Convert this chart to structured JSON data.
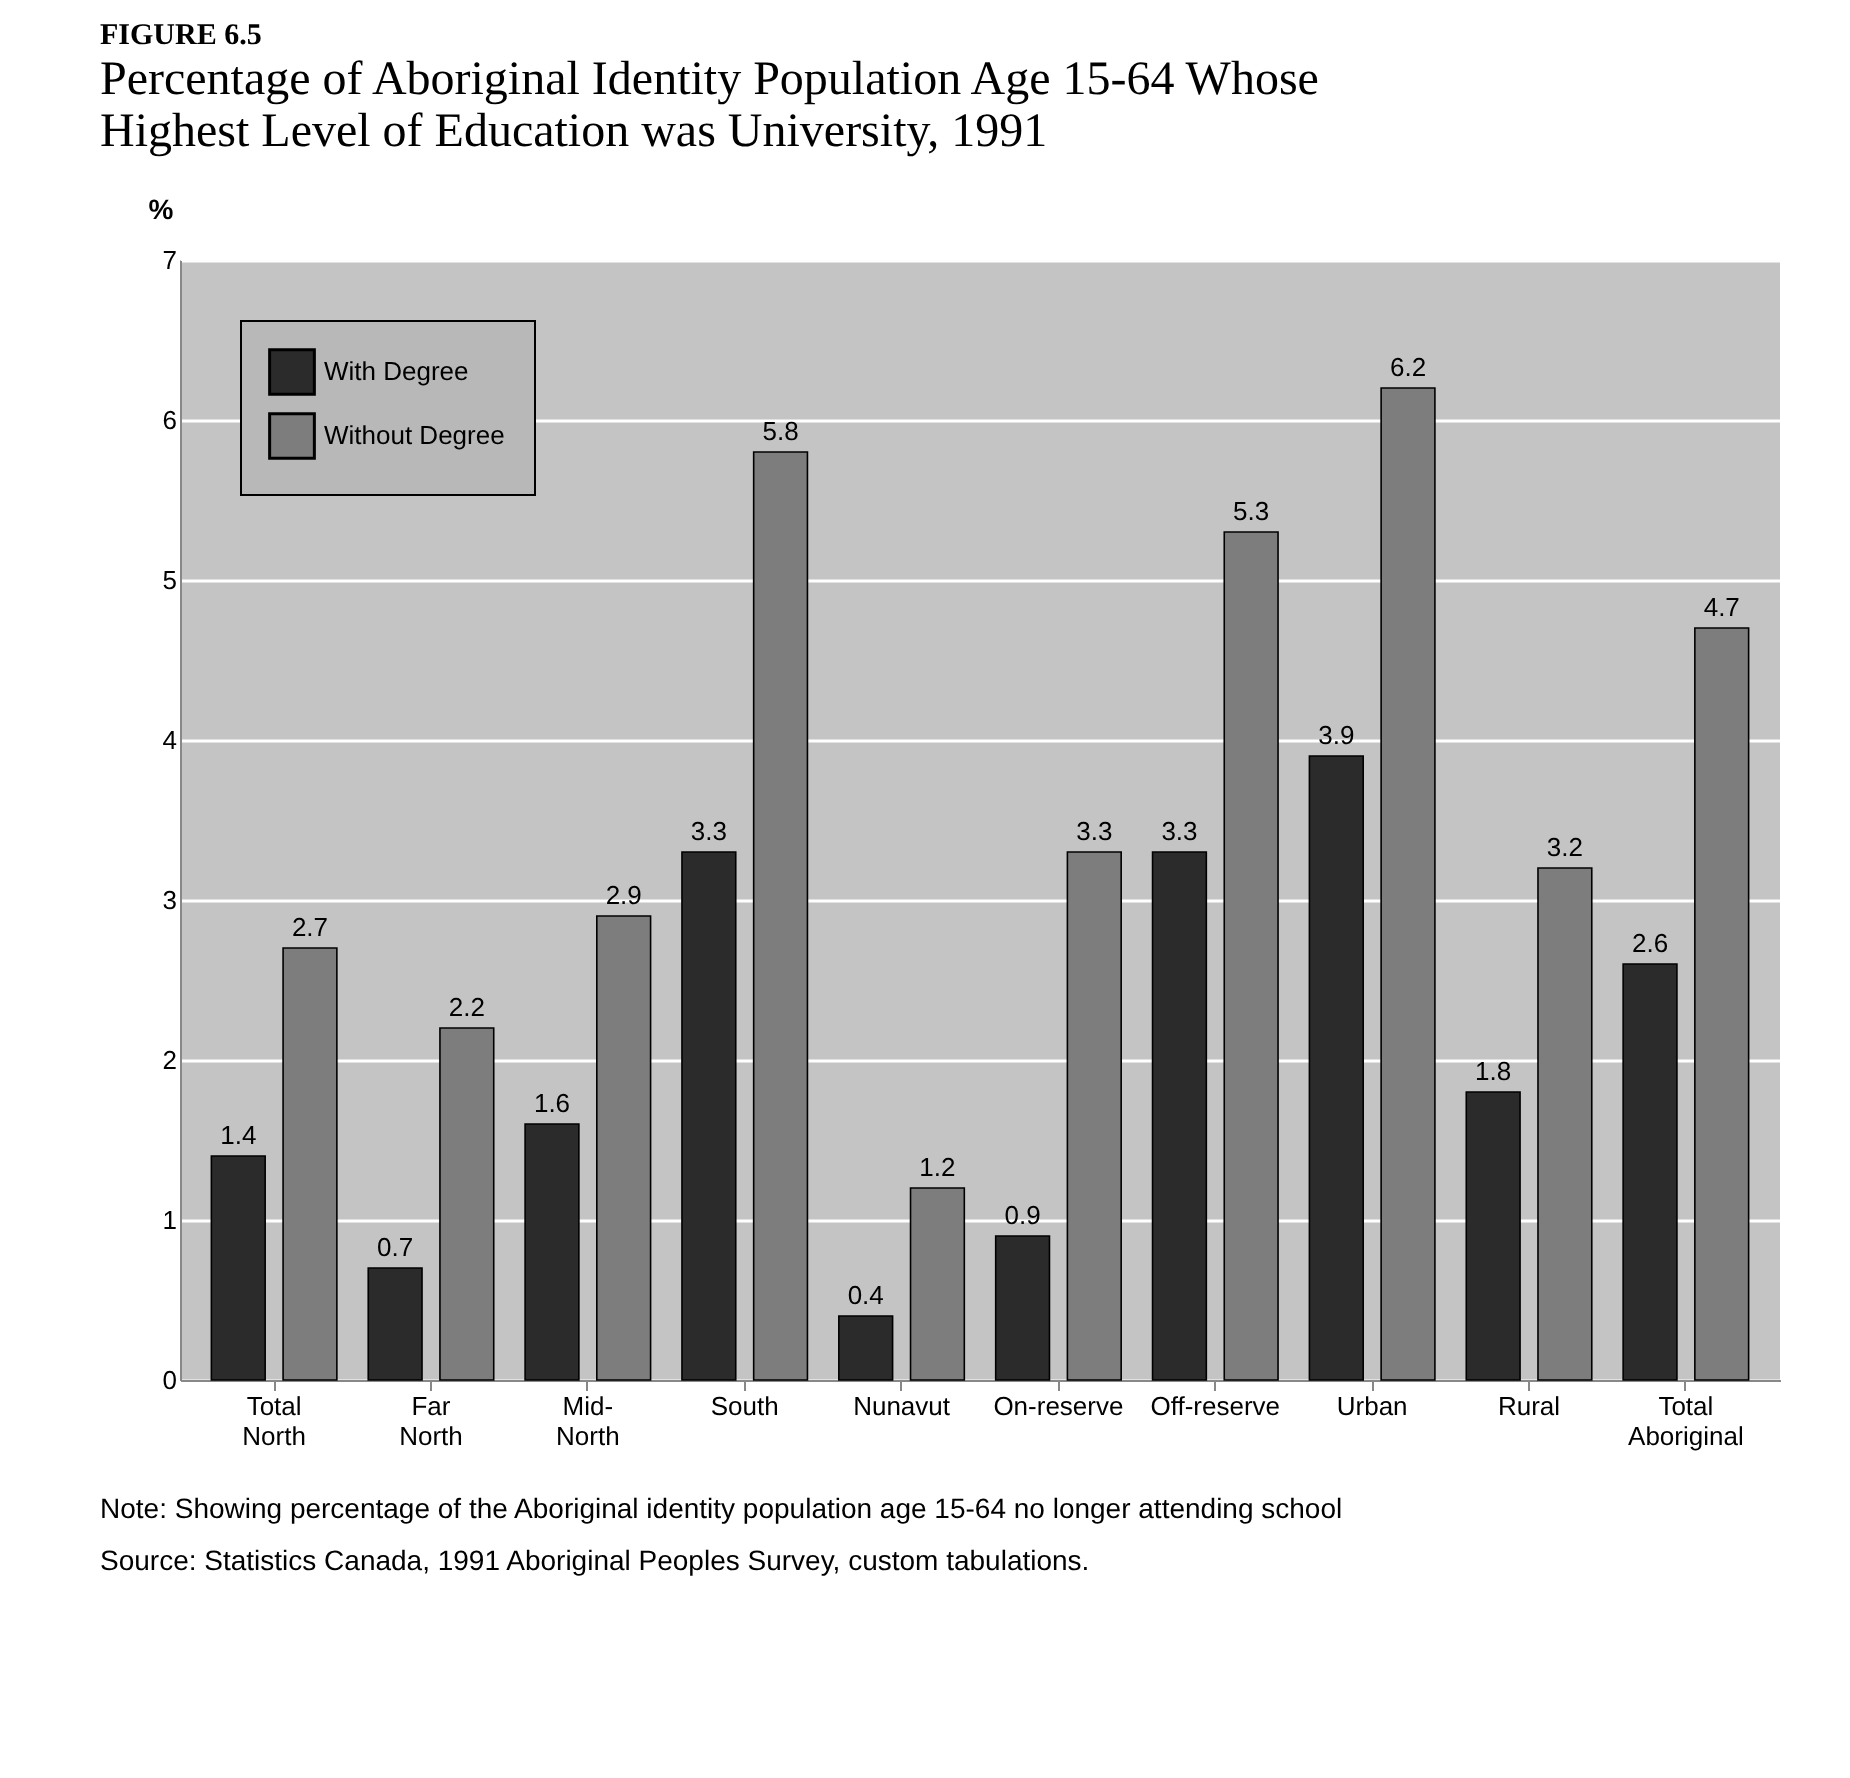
{
  "chart_data": {
    "type": "bar",
    "title": "FIGURE 6.5",
    "subtitle": "Percentage of Aboriginal Identity Population Age 15-64 Whose Highest Level of Education was University, 1991",
    "ylabel": "%",
    "categories": [
      "Total\nNorth",
      "Far\nNorth",
      "Mid-\nNorth",
      "South",
      "Nunavut",
      "On-reserve",
      "Off-reserve",
      "Urban",
      "Rural",
      "Total\nAboriginal"
    ],
    "series": [
      {
        "name": "With Degree",
        "color": "#2b2b2b",
        "values": [
          1.4,
          0.7,
          1.6,
          3.3,
          0.4,
          0.9,
          3.3,
          3.9,
          1.8,
          2.6
        ]
      },
      {
        "name": "Without Degree",
        "color": "#7d7d7d",
        "values": [
          2.7,
          2.2,
          2.9,
          5.8,
          1.2,
          3.3,
          5.3,
          6.2,
          3.2,
          4.7
        ]
      }
    ],
    "ylim": [
      0,
      7
    ],
    "yticks": [
      0,
      1,
      2,
      3,
      4,
      5,
      6,
      7
    ],
    "grid": "y",
    "legend": "top left",
    "data_labels": true,
    "annotations": [
      "Note: Showing percentage of the Aboriginal identity population age 15-64 no longer attending school",
      "Source: Statistics Canada, 1991 Aboriginal Peoples Survey, custom tabulations."
    ]
  }
}
